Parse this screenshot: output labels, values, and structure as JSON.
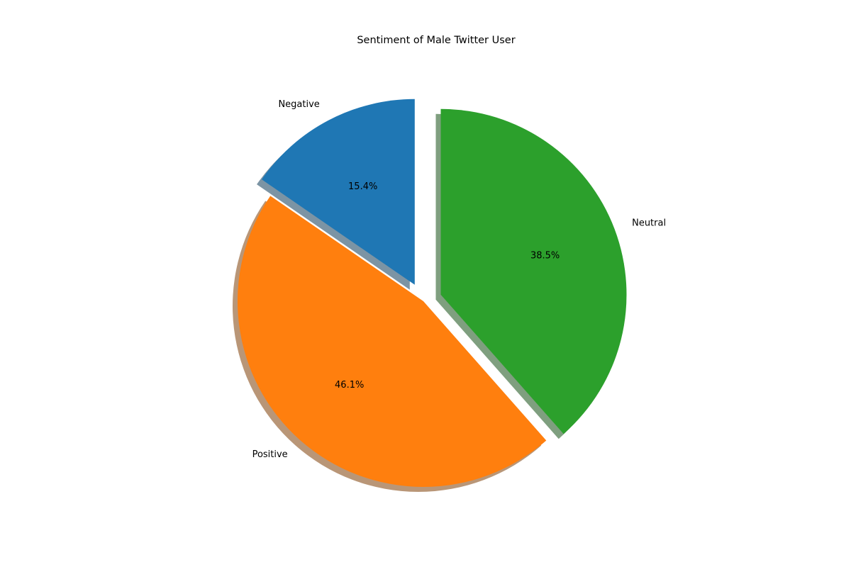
{
  "chart_data": {
    "type": "pie",
    "title": "Sentiment of Male Twitter User",
    "start_angle_deg": 90,
    "direction": "counterclockwise",
    "shadow": true,
    "slices": [
      {
        "label": "Negative",
        "value": 15.4,
        "pct_label": "15.4%",
        "color": "#1f77b4",
        "exploded": true
      },
      {
        "label": "Positive",
        "value": 46.1,
        "pct_label": "46.1%",
        "color": "#ff7f0e",
        "exploded": false
      },
      {
        "label": "Neutral",
        "value": 38.5,
        "pct_label": "38.5%",
        "color": "#2ca02c",
        "exploded": true
      }
    ]
  }
}
